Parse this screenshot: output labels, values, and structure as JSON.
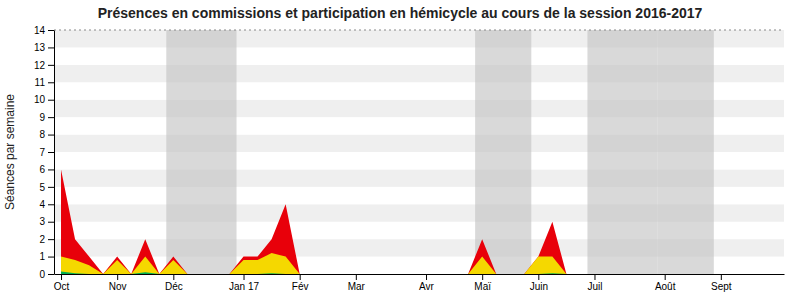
{
  "chart_data": {
    "type": "area",
    "title": "Présences en commissions et participation en hémicycle au cours de la session 2016-2017",
    "ylabel": "Séances par semaine",
    "categories": [
      "Oct",
      null,
      null,
      null,
      "Nov",
      null,
      null,
      null,
      "Déc",
      null,
      null,
      null,
      null,
      "Jan 17",
      null,
      null,
      null,
      "Fév",
      null,
      null,
      null,
      "Mar",
      null,
      null,
      null,
      null,
      "Avr",
      null,
      null,
      null,
      "Maï",
      null,
      null,
      null,
      "Juin",
      null,
      null,
      null,
      "Juil",
      null,
      null,
      null,
      null,
      "Août",
      null,
      null,
      null,
      "Sept",
      null,
      null,
      null,
      null
    ],
    "series": [
      {
        "color": "#e8000a",
        "values": [
          6,
          2,
          1,
          0,
          1,
          0,
          2,
          0,
          1,
          0,
          0,
          0,
          0,
          1,
          1,
          2,
          4,
          0,
          0,
          0,
          0,
          0,
          0,
          0,
          0,
          0,
          0,
          0,
          0,
          0,
          2,
          0,
          0,
          0,
          1,
          3,
          0,
          0,
          0,
          0,
          0,
          0,
          0,
          0,
          0,
          0,
          0,
          0,
          0,
          0,
          0,
          0
        ]
      },
      {
        "color": "#f5d800",
        "values": [
          1,
          0.8,
          0.5,
          0,
          0.8,
          0,
          1,
          0,
          0.8,
          0,
          0,
          0,
          0,
          0.8,
          0.8,
          1.2,
          1,
          0,
          0,
          0,
          0,
          0,
          0,
          0,
          0,
          0,
          0,
          0,
          0,
          0,
          1,
          0,
          0,
          0,
          1,
          1,
          0,
          0,
          0,
          0,
          0,
          0,
          0,
          0,
          0,
          0,
          0,
          0,
          0,
          0,
          0,
          0
        ]
      },
      {
        "color": "#00b050",
        "values": [
          0.15,
          0.05,
          0,
          0,
          0,
          0,
          0.1,
          0,
          0,
          0,
          0,
          0,
          0,
          0,
          0,
          0.05,
          0,
          0,
          0,
          0,
          0,
          0,
          0,
          0,
          0,
          0,
          0,
          0,
          0,
          0,
          0,
          0,
          0,
          0,
          0,
          0.05,
          0,
          0,
          0,
          0,
          0,
          0,
          0,
          0,
          0,
          0,
          0,
          0,
          0,
          0,
          0,
          0
        ]
      }
    ],
    "shaded_ranges": [
      [
        8,
        13
      ],
      [
        30,
        34
      ],
      [
        38,
        43
      ],
      [
        43,
        47
      ]
    ],
    "hline": 14,
    "ylim": [
      0,
      14
    ],
    "yticks": [
      0,
      1,
      2,
      3,
      4,
      5,
      6,
      7,
      8,
      9,
      10,
      11,
      12,
      13,
      14
    ],
    "grid": true
  }
}
